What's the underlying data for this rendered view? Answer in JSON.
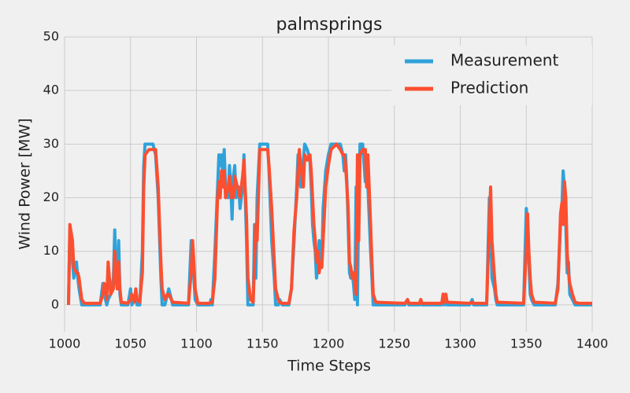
{
  "chart_data": {
    "type": "line",
    "title": "palmsprings",
    "x_label": "Time Steps",
    "y_label": "Wind Power [MW]",
    "x": [
      1003,
      1004,
      1006,
      1007,
      1009,
      1010,
      1011,
      1013,
      1015,
      1027,
      1029,
      1030,
      1032,
      1033,
      1035,
      1037,
      1038,
      1039,
      1040,
      1041,
      1042,
      1043,
      1048,
      1050,
      1051,
      1053,
      1054,
      1055,
      1057,
      1059,
      1060,
      1061,
      1064,
      1067,
      1069,
      1071,
      1073,
      1074,
      1076,
      1078,
      1079,
      1081,
      1082,
      1094,
      1096,
      1097,
      1098,
      1099,
      1101,
      1110,
      1111,
      1112,
      1114,
      1116,
      1117,
      1118,
      1119,
      1120,
      1121,
      1122,
      1124,
      1125,
      1126,
      1127,
      1128,
      1129,
      1130,
      1132,
      1133,
      1135,
      1136,
      1138,
      1139,
      1141,
      1143,
      1144,
      1145,
      1146,
      1148,
      1152,
      1154,
      1155,
      1157,
      1159,
      1160,
      1162,
      1163,
      1165,
      1170,
      1172,
      1174,
      1176,
      1177,
      1178,
      1179,
      1181,
      1182,
      1184,
      1186,
      1187,
      1188,
      1189,
      1190,
      1191,
      1192,
      1193,
      1194,
      1195,
      1196,
      1198,
      1200,
      1202,
      1206,
      1209,
      1211,
      1212,
      1213,
      1214,
      1215,
      1216,
      1217,
      1218,
      1219,
      1220,
      1221,
      1222,
      1223,
      1224,
      1226,
      1228,
      1229,
      1230,
      1232,
      1233,
      1234,
      1236,
      1258,
      1260,
      1261,
      1269,
      1270,
      1271,
      1286,
      1287,
      1288,
      1289,
      1290,
      1307,
      1309,
      1310,
      1320,
      1322,
      1323,
      1324,
      1326,
      1327,
      1328,
      1348,
      1350,
      1351,
      1352,
      1353,
      1354,
      1356,
      1372,
      1374,
      1376,
      1377,
      1378,
      1379,
      1380,
      1381,
      1382,
      1383,
      1385,
      1387,
      1390,
      1400
    ],
    "series": [
      {
        "name": "Measurement",
        "color": "#30a2da",
        "values": [
          0,
          14,
          8,
          5,
          8,
          5,
          3,
          0,
          0,
          0,
          4,
          2,
          0,
          1,
          2,
          5,
          14,
          6,
          3,
          12,
          2,
          0,
          0,
          3,
          0,
          1,
          2,
          0,
          0,
          10,
          26,
          30,
          30,
          30,
          28,
          20,
          5,
          0,
          0,
          2,
          3,
          1,
          0,
          0,
          12,
          11,
          5,
          1,
          0,
          0,
          1,
          0,
          10,
          22,
          28,
          26,
          28,
          24,
          29,
          22,
          20,
          26,
          22,
          16,
          24,
          26,
          20,
          22,
          18,
          22,
          28,
          12,
          0,
          0,
          0,
          15,
          5,
          20,
          30,
          30,
          30,
          25,
          12,
          5,
          0,
          0,
          1,
          0,
          0,
          3,
          12,
          22,
          28,
          25,
          22,
          27,
          30,
          29,
          27,
          22,
          15,
          12,
          10,
          5,
          7,
          12,
          10,
          7,
          18,
          25,
          28,
          30,
          30,
          30,
          28,
          25,
          28,
          23,
          15,
          6,
          5,
          6,
          4,
          1,
          22,
          0,
          20,
          30,
          30,
          23,
          26,
          22,
          10,
          5,
          0,
          0,
          0,
          1,
          0,
          0,
          1,
          0,
          0,
          2,
          0,
          2,
          0,
          0,
          1,
          0,
          0,
          20,
          15,
          5,
          3,
          1,
          0,
          0,
          18,
          15,
          8,
          2,
          1,
          0,
          0,
          4,
          15,
          18,
          25,
          22,
          15,
          6,
          8,
          2,
          1,
          0,
          0,
          0
        ]
      },
      {
        "name": "Prediction",
        "color": "#fc4f30",
        "values": [
          0,
          15,
          12,
          7,
          6,
          6,
          5,
          1,
          0.3,
          0.3,
          2,
          4,
          1,
          8,
          2,
          3,
          10,
          5,
          3,
          8,
          3,
          0.5,
          0.3,
          1,
          2,
          0.5,
          3,
          1,
          0.5,
          6,
          22,
          28,
          29,
          29,
          29,
          22,
          8,
          3,
          1,
          2,
          2,
          1,
          0.5,
          0.3,
          6,
          12,
          8,
          3,
          0.3,
          0.3,
          0.5,
          0.5,
          5,
          20,
          23,
          20,
          25,
          22,
          25,
          20,
          22,
          24,
          20,
          22,
          20,
          24,
          23,
          21,
          20,
          24,
          27,
          16,
          5,
          1,
          0.5,
          8,
          15,
          12,
          29,
          29,
          29,
          26,
          18,
          8,
          3,
          1,
          0.5,
          0.3,
          0.3,
          3,
          14,
          20,
          25,
          29,
          26,
          22,
          28,
          27,
          28,
          25,
          20,
          15,
          12,
          8,
          10,
          6,
          8,
          7,
          12,
          22,
          26,
          29,
          30,
          29,
          28,
          28,
          26,
          22,
          18,
          8,
          7,
          5,
          6,
          4,
          2,
          28,
          12,
          28,
          29,
          29,
          22,
          28,
          15,
          8,
          2,
          0.5,
          0.3,
          1,
          0.3,
          0.3,
          1,
          0.3,
          0.3,
          2,
          0.5,
          2,
          0.5,
          0.3,
          0.5,
          0.3,
          0.3,
          15,
          22,
          12,
          5,
          2,
          0.5,
          0.3,
          10,
          17,
          10,
          5,
          2,
          0.5,
          0.3,
          3,
          17,
          19,
          15,
          23,
          20,
          10,
          6,
          4,
          2,
          0.5,
          0.3,
          0.3
        ]
      }
    ],
    "xlim": [
      1000,
      1400
    ],
    "xticks": [
      1000,
      1050,
      1100,
      1150,
      1200,
      1250,
      1300,
      1350,
      1400
    ],
    "ylim": [
      -5,
      50
    ],
    "yticks": [
      0,
      10,
      20,
      30,
      40,
      50
    ],
    "grid": true,
    "legend": "upper right"
  }
}
